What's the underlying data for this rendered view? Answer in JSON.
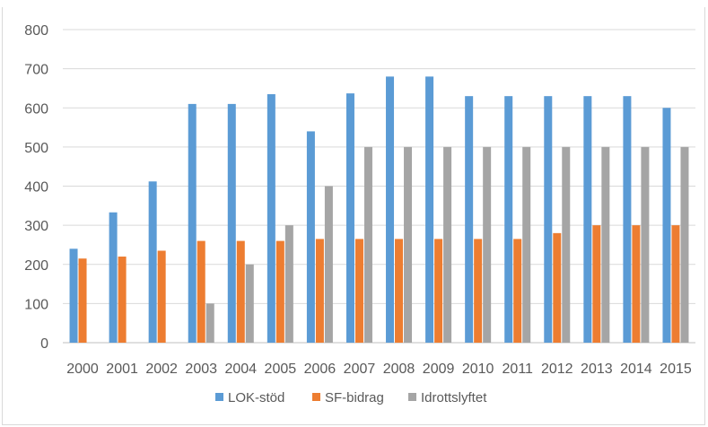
{
  "chart_data": {
    "type": "bar",
    "title": "",
    "xlabel": "",
    "ylabel": "",
    "ylim": [
      0,
      800
    ],
    "yticks": [
      0,
      100,
      200,
      300,
      400,
      500,
      600,
      700,
      800
    ],
    "grid": true,
    "legend_position": "bottom",
    "categories": [
      "2000",
      "2001",
      "2002",
      "2003",
      "2004",
      "2005",
      "2006",
      "2007",
      "2008",
      "2009",
      "2010",
      "2011",
      "2012",
      "2013",
      "2014",
      "2015"
    ],
    "series": [
      {
        "name": "LOK-stöd",
        "color": "#5b9bd5",
        "values": [
          240,
          333,
          412,
          610,
          610,
          635,
          540,
          637,
          680,
          680,
          630,
          630,
          630,
          630,
          630,
          600
        ]
      },
      {
        "name": "SF-bidrag",
        "color": "#ed7d31",
        "values": [
          215,
          220,
          235,
          260,
          260,
          260,
          265,
          265,
          265,
          265,
          265,
          265,
          280,
          300,
          300,
          300
        ]
      },
      {
        "name": "Idrottslyftet",
        "color": "#a5a5a5",
        "values": [
          0,
          0,
          0,
          100,
          200,
          300,
          400,
          500,
          500,
          500,
          500,
          500,
          500,
          500,
          500,
          500
        ]
      }
    ]
  }
}
